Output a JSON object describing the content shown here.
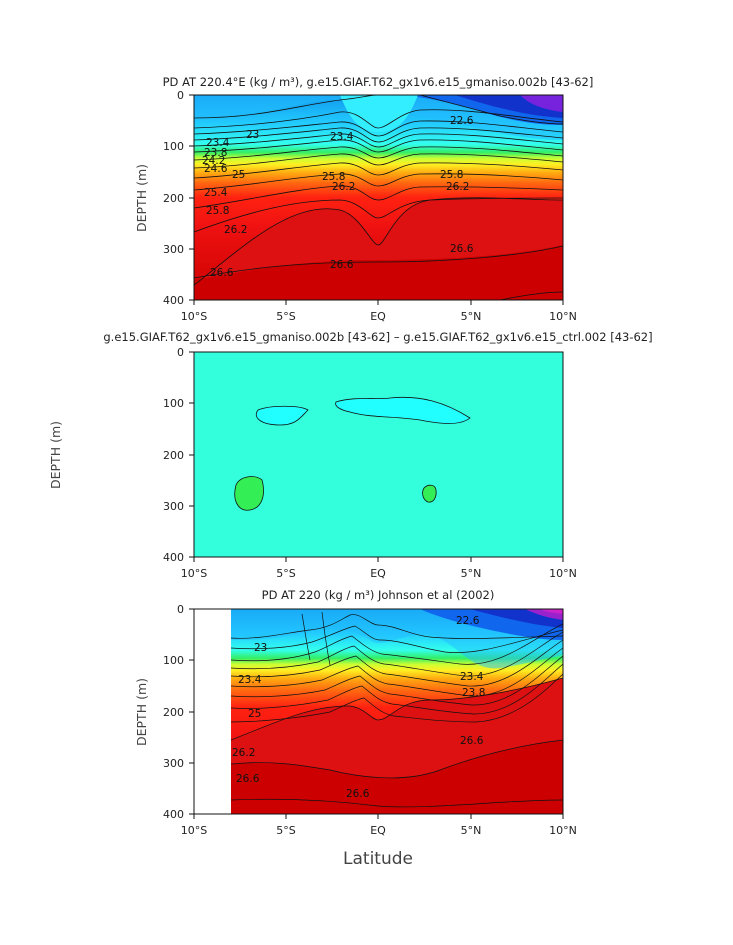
{
  "chart_data": [
    {
      "type": "heatmap",
      "title": "PD AT 220.4°E (kg / m³), g.e15.GIAF.T62_gx1v6.e15_gmaniso.002b [43-62]",
      "ylabel": "DEPTH (m)",
      "xlim": [
        -10,
        10
      ],
      "ylim": [
        400,
        0
      ],
      "x_ticks": [
        "10°S",
        "5°S",
        "EQ",
        "5°N",
        "10°N"
      ],
      "y_ticks": [
        "0",
        "100",
        "200",
        "300",
        "400"
      ],
      "contour_interval": 0.4,
      "contour_labels": [
        "23",
        "23.4",
        "23.8",
        "24.2",
        "24.6",
        "25",
        "25.4",
        "25.8",
        "26.2",
        "26.6",
        "22.6"
      ],
      "layer_depths_m": [
        {
          "density": 22.6,
          "depth_at_10S": 40,
          "depth_at_EQ": 30,
          "depth_at_10N": 20
        },
        {
          "density": 23.0,
          "depth_at_10S": 70,
          "depth_at_EQ": 65,
          "depth_at_10N": 70
        },
        {
          "density": 25.0,
          "depth_at_10S": 150,
          "depth_at_EQ": 135,
          "depth_at_10N": 155
        },
        {
          "density": 26.2,
          "depth_at_10S": 280,
          "depth_at_EQ": 240,
          "depth_at_10N": 200
        },
        {
          "density": 26.6,
          "depth_at_10S": 370,
          "depth_at_EQ": 330,
          "depth_at_10N": 325
        }
      ]
    },
    {
      "type": "heatmap",
      "title": "g.e15.GIAF.T62_gx1v6.e15_gmaniso.002b [43-62] – g.e15.GIAF.T62_gx1v6.e15_ctrl.002 [43-62]",
      "ylabel": "DEPTH (m)",
      "xlim": [
        -10,
        10
      ],
      "ylim": [
        400,
        0
      ],
      "x_ticks": [
        "10°S",
        "5°S",
        "EQ",
        "5°N",
        "10°N"
      ],
      "y_ticks": [
        "0",
        "100",
        "200",
        "300",
        "400"
      ],
      "regions": [
        {
          "kind": "negative",
          "lat_range": [
            -6.5,
            -3.5
          ],
          "depth_range": [
            105,
            135
          ]
        },
        {
          "kind": "negative",
          "lat_range": [
            -2,
            5
          ],
          "depth_range": [
            85,
            140
          ]
        },
        {
          "kind": "positive",
          "lat_range": [
            -10,
            -7.5
          ],
          "depth_range": [
            245,
            310
          ]
        },
        {
          "kind": "positive",
          "lat_range": [
            2.3,
            3.2
          ],
          "depth_range": [
            260,
            295
          ]
        }
      ]
    },
    {
      "type": "heatmap",
      "title": "PD AT 220 (kg / m³) Johnson et al (2002)",
      "ylabel": "DEPTH (m)",
      "xlabel": "Latitude",
      "xlim": [
        -10,
        10
      ],
      "ylim": [
        400,
        0
      ],
      "data_lat_range": [
        -8,
        10
      ],
      "x_ticks": [
        "10°S",
        "5°S",
        "EQ",
        "5°N",
        "10°N"
      ],
      "y_ticks": [
        "0",
        "100",
        "200",
        "300",
        "400"
      ],
      "contour_labels": [
        "23",
        "23.4",
        "25",
        "26.2",
        "26.6",
        "22.6",
        "23.4",
        "23.8",
        "26.6"
      ],
      "layer_depths_m": [
        {
          "density": 22.6,
          "depth_at_8S": 20,
          "depth_at_EQ": 25,
          "depth_at_10N": 10
        },
        {
          "density": 23.0,
          "depth_at_8S": 60,
          "depth_at_EQ": 60,
          "depth_at_10N": 40
        },
        {
          "density": 25.0,
          "depth_at_8S": 145,
          "depth_at_EQ": 120,
          "depth_at_10N": 75
        },
        {
          "density": 26.2,
          "depth_at_8S": 200,
          "depth_at_EQ": 205,
          "depth_at_10N": 160
        },
        {
          "density": 26.6,
          "depth_at_8S": 260,
          "depth_at_EQ": 320,
          "depth_at_10N": 270
        }
      ]
    }
  ],
  "panels": [
    {
      "title": "PD AT 220.4°E (kg / m³), g.e15.GIAF.T62_gx1v6.e15_gmaniso.002b [43-62]",
      "ylabel": "DEPTH (m)"
    },
    {
      "title": "g.e15.GIAF.T62_gx1v6.e15_gmaniso.002b [43-62] – g.e15.GIAF.T62_gx1v6.e15_ctrl.002 [43-62]",
      "ylabel": "DEPTH (m)"
    },
    {
      "title": "PD AT 220 (kg / m³) Johnson et al (2002)",
      "ylabel": "DEPTH (m)"
    }
  ],
  "xlabel": "Latitude",
  "x_ticks": [
    "10°S",
    "5°S",
    "EQ",
    "5°N",
    "10°N"
  ],
  "y_ticks": [
    "0",
    "100",
    "200",
    "300",
    "400"
  ],
  "colors": {
    "cyan_diff": "#33ffdd",
    "neg_diff": "#22ffff",
    "pos_diff": "#33ee55"
  }
}
